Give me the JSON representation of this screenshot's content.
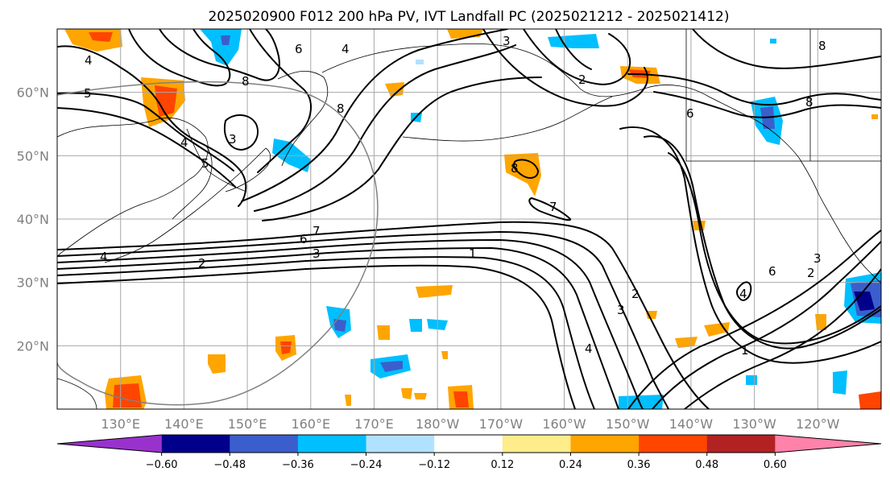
{
  "title": "2025020900 F012 200 hPa PV, IVT Landfall PC (2025021212 - 2025021412)",
  "map": {
    "projection": "PlateCarree",
    "lon_range": [
      120,
      250
    ],
    "lat_range": [
      10,
      70
    ],
    "lon_ticks": [
      "130°E",
      "140°E",
      "150°E",
      "160°E",
      "170°E",
      "180°W",
      "170°W",
      "160°W",
      "150°W",
      "140°W",
      "130°W",
      "120°W"
    ],
    "lat_ticks": [
      "20°N",
      "30°N",
      "40°N",
      "50°N",
      "60°N"
    ],
    "lon_tick_values": [
      130,
      140,
      150,
      160,
      170,
      180,
      190,
      200,
      210,
      220,
      230,
      240
    ],
    "lat_tick_values": [
      20,
      30,
      40,
      50,
      60
    ],
    "grid": true,
    "contour_field": "200 hPa PV",
    "contour_labels": [
      "1",
      "2",
      "3",
      "4",
      "5",
      "6",
      "7",
      "8"
    ],
    "shaded_field": "IVT Landfall PC",
    "legend_circle": {
      "center_lon": 140,
      "center_lat": 40,
      "radius_deg": 30
    }
  },
  "colorbar": {
    "tick_labels": [
      "−0.60",
      "−0.48",
      "−0.36",
      "−0.24",
      "−0.12",
      "0.12",
      "0.24",
      "0.36",
      "0.48",
      "0.60"
    ],
    "bounds": [
      -0.6,
      -0.48,
      -0.36,
      -0.24,
      -0.12,
      0.12,
      0.24,
      0.36,
      0.48,
      0.6
    ],
    "colors": [
      "#9932cc",
      "#00008b",
      "#3a5fcd",
      "#00bfff",
      "#b0e2ff",
      "#ffffff",
      "#ffec8b",
      "#ffa500",
      "#ff4500",
      "#b22222",
      "#ff82ab"
    ],
    "extend": "both"
  },
  "chart_data": {
    "type": "heatmap",
    "title": "2025020900 F012 200 hPa PV, IVT Landfall PC (2025021212 - 2025021412)",
    "xlabel": "",
    "ylabel": "",
    "x_range": [
      120,
      250
    ],
    "y_range": [
      10,
      70
    ],
    "color_levels": [
      -0.6,
      -0.48,
      -0.36,
      -0.24,
      -0.12,
      0.12,
      0.24,
      0.36,
      0.48,
      0.6
    ]
  }
}
